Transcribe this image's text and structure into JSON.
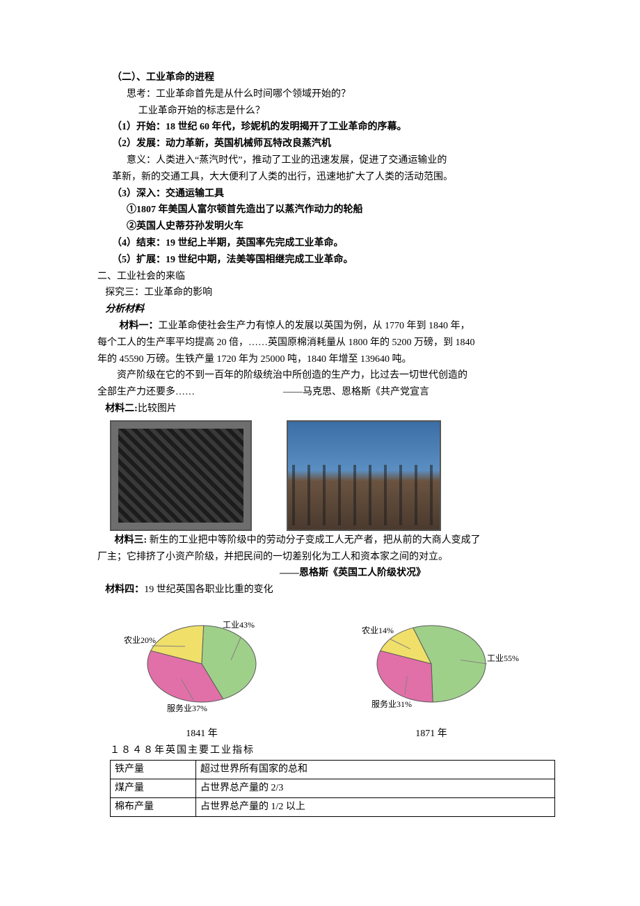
{
  "section2": {
    "heading": "（二）、工业革命的进程",
    "think1": "思考：工业革命首先是从什么时间哪个领域开始的？",
    "think2": "工业革命开始的标志是什么？",
    "p1": "（1）开始：18 世纪 60 年代，珍妮机的发明揭开了工业革命的序幕。",
    "p2a": "（2）发展：动力革新，英国机械师瓦特改良蒸汽机",
    "p2b": "意义：人类进入“蒸汽时代”，推动了工业的迅速发展，促进了交通运输业的",
    "p2c": "革新，新的交通工具，大大便利了人类的出行，迅速地扩大了人类的活动范围。",
    "p3": "（3）深入：交通运输工具",
    "p3a": "①1807 年美国人富尔顿首先造出了以蒸汽作动力的轮船",
    "p3b": "②英国人史蒂芬孙发明火车",
    "p4": "（4）结束：19 世纪上半期，英国率先完成工业革命。",
    "p5": "（5）扩展：19 世纪中期，法美等国相继完成工业革命。"
  },
  "part2": {
    "heading": "二、工业社会的来临",
    "explore": "探究三：工业革命的影响",
    "analyze": "分析材料"
  },
  "mat1": {
    "label": "材料一：",
    "l1": "工业革命使社会生产力有惊人的发展以英国为例，从 1770 年到 1840 年，",
    "l2": "每个工人的生产率平均提高 20 倍，……英国原棉消耗量从 1800 年的 5200 万磅，到 1840",
    "l3": "年的 45590 万磅。生铁产量 1720 年为 25000 吨，1840 年增至 139640 吨。",
    "l4": "资产阶级在它的不到一百年的阶级统治中所创造的生产力，比过去一切世代创造的",
    "l5": "全部生产力还要多……",
    "src": "——马克思、恩格斯《共产党宣言"
  },
  "mat2": {
    "label": "材料二:",
    "text": "比较图片"
  },
  "mat3": {
    "label": "材料三:",
    "l1": " 新生的工业把中等阶级中的劳动分子变成工人无产者，把从前的大商人变成了",
    "l2": "厂主；它排挤了小资产阶级，并把民间的一切差别化为工人和资本家之间的对立。",
    "src": "——恩格斯《英国工人阶级状况》"
  },
  "mat4": {
    "label": "材料四：",
    "text": "19 世纪英国各职业比重的变化"
  },
  "pies": {
    "colors": {
      "industry": "#9fd08a",
      "agri": "#f0e06a",
      "service": "#e170a8",
      "stroke": "#5a5a5a",
      "leader": "#808080"
    },
    "a": {
      "year": "1841 年",
      "industry": {
        "label": "工业43%",
        "value": 43
      },
      "agri": {
        "label": "农业20%",
        "value": 20
      },
      "service": {
        "label": "服务业37%",
        "value": 37
      }
    },
    "b": {
      "year": "1871 年",
      "industry": {
        "label": "工业55%",
        "value": 55
      },
      "agri": {
        "label": "农业14%",
        "value": 14
      },
      "service": {
        "label": "服务业31%",
        "value": 31
      }
    }
  },
  "table": {
    "title": "１８４８年英国主要工业指标",
    "rows": [
      [
        "铁产量",
        "超过世界所有国家的总和"
      ],
      [
        "煤产量",
        "占世界总产量的 2/3"
      ],
      [
        "棉布产量",
        "占世界总产量的 1/2 以上"
      ]
    ]
  }
}
